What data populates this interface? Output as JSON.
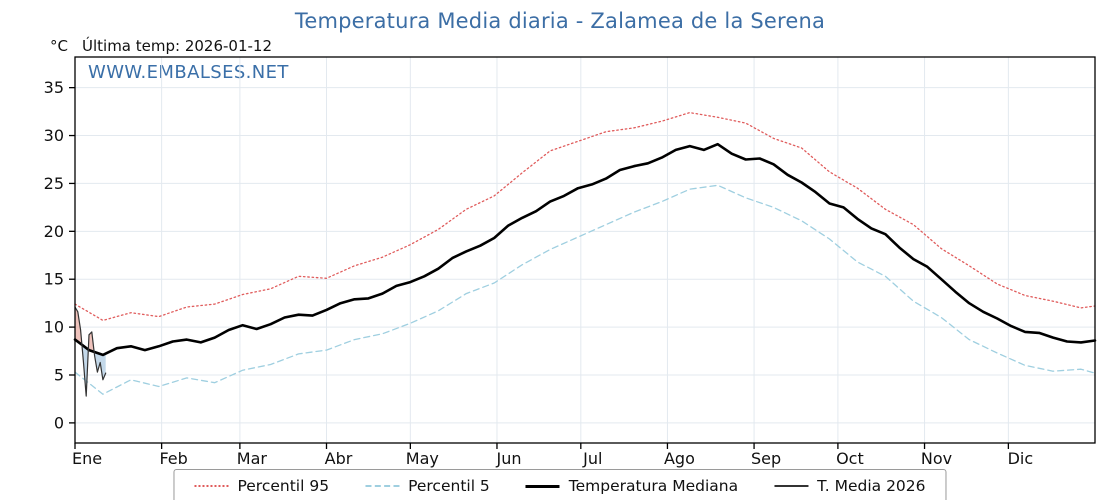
{
  "chart_data": {
    "type": "line",
    "title": "Temperatura Media diaria - Zalamea de la Serena",
    "title_color": "#3c6ea5",
    "ylabel": "°C",
    "last_temp_label": "Última temp: 2026-01-12",
    "watermark": "WWW.EMBALSES.NET",
    "watermark_color": "#3a6fa8",
    "grid_color": "#e3e9ef",
    "axis_color": "#000000",
    "x_axis": {
      "tick_labels": [
        "Ene",
        "Feb",
        "Mar",
        "Abr",
        "May",
        "Jun",
        "Jul",
        "Ago",
        "Sep",
        "Oct",
        "Nov",
        "Dic"
      ],
      "month_start_days": [
        0,
        31,
        59,
        90,
        120,
        151,
        181,
        212,
        243,
        273,
        304,
        334
      ],
      "days_in_year": 365
    },
    "y_axis": {
      "ticks": [
        0,
        5,
        10,
        15,
        20,
        25,
        30,
        35
      ],
      "min": -2.1,
      "max": 38.2
    },
    "series": [
      {
        "name": "Percentil 95",
        "color": "#e05c5c",
        "style": "dotted",
        "width": 1.3,
        "days": [
          0,
          10,
          20,
          30,
          40,
          50,
          60,
          70,
          80,
          90,
          100,
          110,
          120,
          130,
          140,
          150,
          160,
          170,
          180,
          190,
          200,
          210,
          220,
          230,
          240,
          250,
          260,
          270,
          280,
          290,
          300,
          310,
          320,
          330,
          340,
          350,
          360,
          365
        ],
        "values": [
          12.4,
          10.7,
          11.5,
          11.1,
          12.1,
          12.4,
          13.4,
          14.0,
          15.3,
          15.1,
          16.4,
          17.3,
          18.6,
          20.2,
          22.3,
          23.7,
          26.1,
          28.4,
          29.4,
          30.4,
          30.8,
          31.5,
          32.4,
          31.9,
          31.3,
          29.7,
          28.7,
          26.2,
          24.5,
          22.3,
          20.7,
          18.2,
          16.4,
          14.5,
          13.3,
          12.7,
          12.0,
          12.2
        ]
      },
      {
        "name": "Percentil 5",
        "color": "#9fcfe0",
        "style": "dashed",
        "width": 1.3,
        "days": [
          0,
          10,
          20,
          30,
          40,
          50,
          60,
          70,
          80,
          90,
          100,
          110,
          120,
          130,
          140,
          150,
          160,
          170,
          180,
          190,
          200,
          210,
          220,
          230,
          240,
          250,
          260,
          270,
          280,
          290,
          300,
          310,
          320,
          330,
          340,
          350,
          360,
          365
        ],
        "values": [
          5.3,
          3.0,
          4.5,
          3.8,
          4.7,
          4.2,
          5.5,
          6.1,
          7.2,
          7.6,
          8.7,
          9.3,
          10.4,
          11.7,
          13.5,
          14.6,
          16.5,
          18.1,
          19.4,
          20.7,
          22.0,
          23.1,
          24.4,
          24.8,
          23.5,
          22.5,
          21.1,
          19.2,
          16.8,
          15.3,
          12.7,
          11.0,
          8.7,
          7.3,
          6.0,
          5.4,
          5.6,
          5.2
        ]
      },
      {
        "name": "Temperatura Mediana",
        "color": "#000000",
        "style": "solid",
        "width": 2.6,
        "days": [
          0,
          5,
          10,
          15,
          20,
          25,
          30,
          35,
          40,
          45,
          50,
          55,
          60,
          65,
          70,
          75,
          80,
          85,
          90,
          95,
          100,
          105,
          110,
          115,
          120,
          125,
          130,
          135,
          140,
          145,
          150,
          155,
          160,
          165,
          170,
          175,
          180,
          185,
          190,
          195,
          200,
          205,
          210,
          215,
          220,
          225,
          230,
          235,
          240,
          245,
          250,
          255,
          260,
          265,
          270,
          275,
          280,
          285,
          290,
          295,
          300,
          305,
          310,
          315,
          320,
          325,
          330,
          335,
          340,
          345,
          350,
          355,
          360,
          365
        ],
        "values": [
          8.7,
          7.6,
          7.1,
          7.8,
          8.0,
          7.6,
          8.0,
          8.5,
          8.7,
          8.4,
          8.9,
          9.7,
          10.2,
          9.8,
          10.3,
          11.0,
          11.3,
          11.2,
          11.8,
          12.5,
          12.9,
          13.0,
          13.5,
          14.3,
          14.7,
          15.3,
          16.1,
          17.2,
          17.9,
          18.5,
          19.3,
          20.6,
          21.4,
          22.1,
          23.1,
          23.7,
          24.5,
          24.9,
          25.5,
          26.4,
          26.8,
          27.1,
          27.7,
          28.5,
          28.9,
          28.5,
          29.1,
          28.1,
          27.5,
          27.6,
          27.0,
          25.9,
          25.1,
          24.1,
          22.9,
          22.5,
          21.3,
          20.3,
          19.7,
          18.3,
          17.1,
          16.3,
          15.0,
          13.7,
          12.5,
          11.6,
          10.9,
          10.1,
          9.5,
          9.4,
          8.9,
          8.5,
          8.4,
          8.6
        ]
      },
      {
        "name": "T. Media 2026",
        "color": "#333333",
        "style": "solid",
        "width": 1.2,
        "days": [
          0,
          1,
          2,
          3,
          4,
          5,
          6,
          7,
          8,
          9,
          10,
          11
        ],
        "values": [
          12.1,
          11.6,
          9.7,
          6.4,
          2.8,
          9.2,
          9.5,
          7.0,
          5.3,
          6.3,
          4.5,
          5.2
        ]
      }
    ],
    "fill": {
      "above_color": "#e8a9a0",
      "below_color": "#a9c7e0",
      "opacity": 0.7,
      "between": [
        "T. Media 2026",
        "Temperatura Mediana"
      ]
    }
  }
}
